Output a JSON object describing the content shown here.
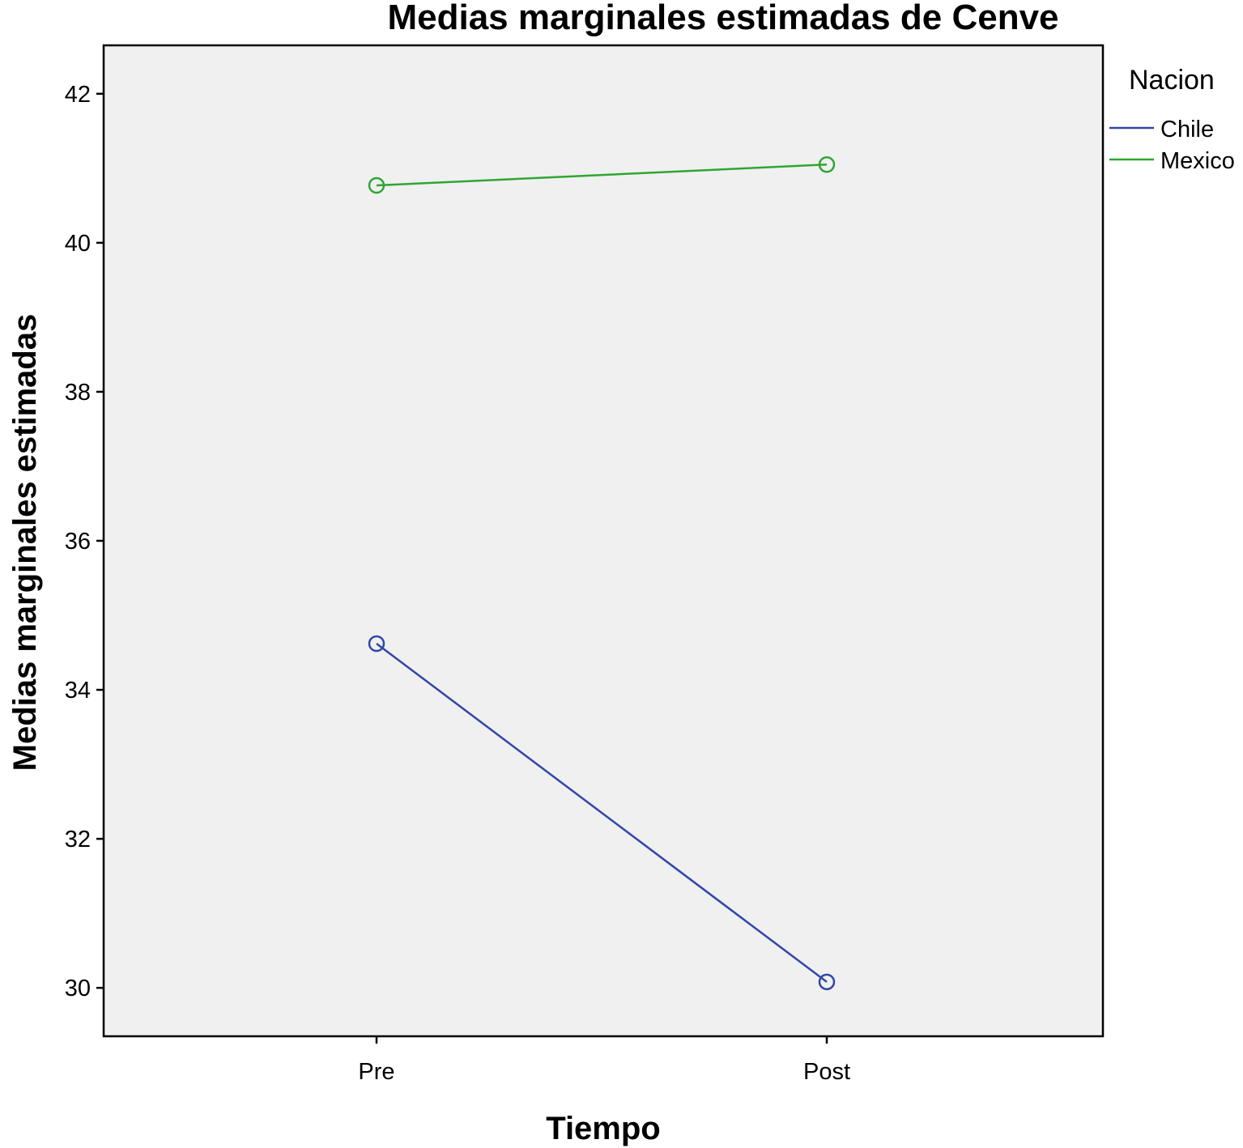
{
  "chart_data": {
    "type": "line",
    "title": "Medias marginales estimadas de Cenve",
    "xlabel": "Tiempo",
    "ylabel": "Medias marginales estimadas",
    "categories": [
      "Pre",
      "Post"
    ],
    "ylim": [
      29.35,
      42.65
    ],
    "yticks": [
      30,
      32,
      34,
      36,
      38,
      40,
      42
    ],
    "grid": false,
    "legend_title": "Nacion",
    "legend_position": "top-right (outside plot)",
    "plot_background": "#f0f0f0",
    "series": [
      {
        "name": "Chile",
        "values": [
          34.62,
          30.08
        ],
        "color": "#3246a8"
      },
      {
        "name": "Mexico",
        "values": [
          40.77,
          41.05
        ],
        "color": "#2ea632"
      }
    ]
  }
}
